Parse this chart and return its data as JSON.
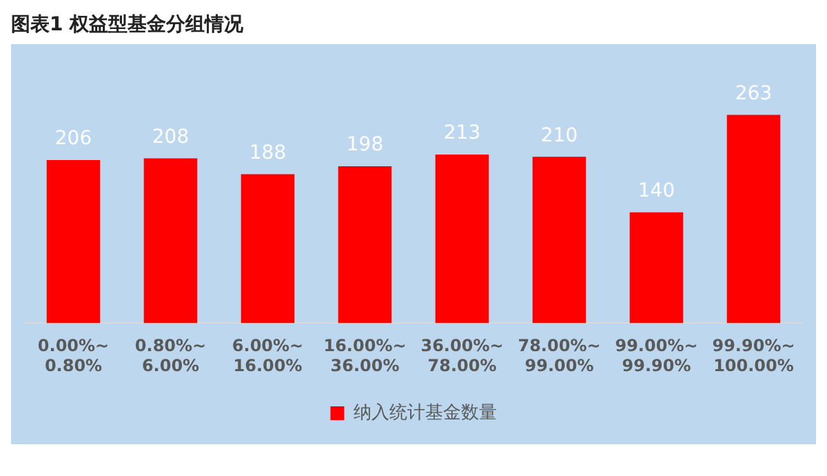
{
  "chart_data": {
    "type": "bar",
    "title": "图表1  权益型基金分组情况",
    "categories": [
      "0.00%~0.80%",
      "0.80%~6.00%",
      "6.00%~16.00%",
      "16.00%~36.00%",
      "36.00%~78.00%",
      "78.00%~99.00%",
      "99.00%~99.90%",
      "99.90%~100.00%"
    ],
    "series": [
      {
        "name": "纳入统计基金数量",
        "color": "#ff0000",
        "values": [
          206,
          208,
          188,
          198,
          213,
          210,
          140,
          263
        ]
      }
    ],
    "data_labels": true,
    "legend": "bottom",
    "grid": false
  }
}
